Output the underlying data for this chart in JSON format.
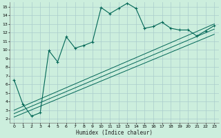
{
  "xlabel": "Humidex (Indice chaleur)",
  "bg_color": "#cceedd",
  "grid_color": "#aacccc",
  "line_color": "#006655",
  "xlim": [
    -0.5,
    23.5
  ],
  "ylim": [
    1.5,
    15.5
  ],
  "xticks": [
    0,
    1,
    2,
    3,
    4,
    5,
    6,
    7,
    8,
    9,
    10,
    11,
    12,
    13,
    14,
    15,
    16,
    17,
    18,
    19,
    20,
    21,
    22,
    23
  ],
  "yticks": [
    2,
    3,
    4,
    5,
    6,
    7,
    8,
    9,
    10,
    11,
    12,
    13,
    14,
    15
  ],
  "main_line_x": [
    0,
    1,
    2,
    3,
    4,
    5,
    6,
    7,
    8,
    9,
    10,
    11,
    12,
    13,
    14,
    15,
    16,
    17,
    18,
    19,
    20,
    21,
    22,
    23
  ],
  "main_line_y": [
    6.5,
    3.7,
    2.3,
    2.7,
    9.9,
    8.6,
    11.5,
    10.2,
    10.5,
    10.9,
    14.9,
    14.2,
    14.8,
    15.4,
    14.8,
    12.5,
    12.7,
    13.2,
    12.5,
    12.3,
    12.3,
    11.6,
    12.2,
    12.8
  ],
  "diag_line1_x": [
    0,
    23
  ],
  "diag_line1_y": [
    2.2,
    11.8
  ],
  "diag_line2_x": [
    0,
    23
  ],
  "diag_line2_y": [
    2.6,
    12.4
  ],
  "diag_line3_x": [
    0,
    23
  ],
  "diag_line3_y": [
    3.0,
    13.0
  ]
}
